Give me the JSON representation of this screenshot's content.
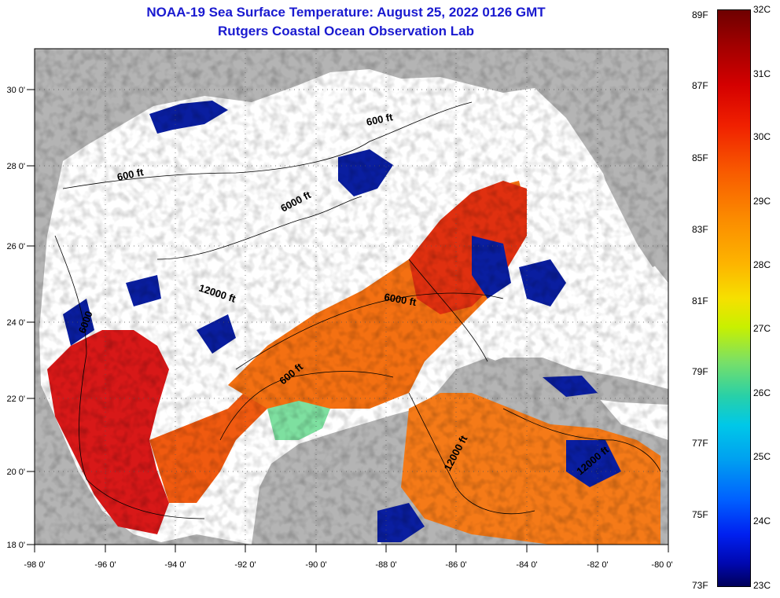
{
  "title": {
    "line1": "NOAA-19 Sea Surface Temperature:  August 25, 2022 0126 GMT",
    "line2": "Rutgers Coastal Ocean Observation Lab"
  },
  "map": {
    "region": "Gulf of Mexico",
    "lon_ticks": [
      "-98 0'",
      "-96 0'",
      "-94 0'",
      "-92 0'",
      "-90 0'",
      "-88 0'",
      "-86 0'",
      "-84 0'",
      "-82 0'",
      "-80 0'"
    ],
    "lat_ticks": [
      "30 0'",
      "28 0'",
      "26 0'",
      "24 0'",
      "22 0'",
      "20 0'",
      "18 0'"
    ],
    "lon_range": [
      -98,
      -80
    ],
    "lat_range": [
      18,
      31
    ],
    "grid": "dotted",
    "contour_labels": [
      "600 ft",
      "600 ft",
      "6000 ft",
      "12000 ft",
      "6000",
      "6000 ft",
      "600 ft",
      "12000 ft",
      "12000 ft"
    ],
    "colors": {
      "land": "#b4b4b4",
      "cloud": "#ffffff",
      "warm": "#e01010",
      "cool": "#0a1ea0"
    }
  },
  "colorbar": {
    "fahrenheit": [
      "89F",
      "87F",
      "85F",
      "83F",
      "81F",
      "79F",
      "77F",
      "75F",
      "73F"
    ],
    "celsius": [
      "32C",
      "31C",
      "30C",
      "29C",
      "28C",
      "27C",
      "26C",
      "25C",
      "24C",
      "23C"
    ]
  }
}
